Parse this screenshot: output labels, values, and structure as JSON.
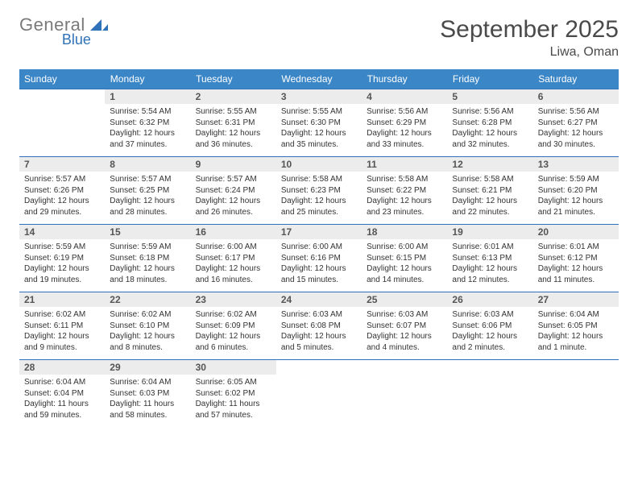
{
  "logo": {
    "word1": "General",
    "word2": "Blue",
    "icon_color": "#2f72b8",
    "word1_color": "#7a7a7a",
    "word2_color": "#2f72b8"
  },
  "header": {
    "title": "September 2025",
    "location": "Liwa, Oman"
  },
  "colors": {
    "header_bg": "#3b86c6",
    "header_border": "#2f72b8",
    "daynum_bg": "#ececec",
    "text": "#333333"
  },
  "weekdays": [
    "Sunday",
    "Monday",
    "Tuesday",
    "Wednesday",
    "Thursday",
    "Friday",
    "Saturday"
  ],
  "weeks": [
    [
      {
        "blank": true
      },
      {
        "n": "1",
        "sunrise": "5:54 AM",
        "sunset": "6:32 PM",
        "daylight": "12 hours and 37 minutes."
      },
      {
        "n": "2",
        "sunrise": "5:55 AM",
        "sunset": "6:31 PM",
        "daylight": "12 hours and 36 minutes."
      },
      {
        "n": "3",
        "sunrise": "5:55 AM",
        "sunset": "6:30 PM",
        "daylight": "12 hours and 35 minutes."
      },
      {
        "n": "4",
        "sunrise": "5:56 AM",
        "sunset": "6:29 PM",
        "daylight": "12 hours and 33 minutes."
      },
      {
        "n": "5",
        "sunrise": "5:56 AM",
        "sunset": "6:28 PM",
        "daylight": "12 hours and 32 minutes."
      },
      {
        "n": "6",
        "sunrise": "5:56 AM",
        "sunset": "6:27 PM",
        "daylight": "12 hours and 30 minutes."
      }
    ],
    [
      {
        "n": "7",
        "sunrise": "5:57 AM",
        "sunset": "6:26 PM",
        "daylight": "12 hours and 29 minutes."
      },
      {
        "n": "8",
        "sunrise": "5:57 AM",
        "sunset": "6:25 PM",
        "daylight": "12 hours and 28 minutes."
      },
      {
        "n": "9",
        "sunrise": "5:57 AM",
        "sunset": "6:24 PM",
        "daylight": "12 hours and 26 minutes."
      },
      {
        "n": "10",
        "sunrise": "5:58 AM",
        "sunset": "6:23 PM",
        "daylight": "12 hours and 25 minutes."
      },
      {
        "n": "11",
        "sunrise": "5:58 AM",
        "sunset": "6:22 PM",
        "daylight": "12 hours and 23 minutes."
      },
      {
        "n": "12",
        "sunrise": "5:58 AM",
        "sunset": "6:21 PM",
        "daylight": "12 hours and 22 minutes."
      },
      {
        "n": "13",
        "sunrise": "5:59 AM",
        "sunset": "6:20 PM",
        "daylight": "12 hours and 21 minutes."
      }
    ],
    [
      {
        "n": "14",
        "sunrise": "5:59 AM",
        "sunset": "6:19 PM",
        "daylight": "12 hours and 19 minutes."
      },
      {
        "n": "15",
        "sunrise": "5:59 AM",
        "sunset": "6:18 PM",
        "daylight": "12 hours and 18 minutes."
      },
      {
        "n": "16",
        "sunrise": "6:00 AM",
        "sunset": "6:17 PM",
        "daylight": "12 hours and 16 minutes."
      },
      {
        "n": "17",
        "sunrise": "6:00 AM",
        "sunset": "6:16 PM",
        "daylight": "12 hours and 15 minutes."
      },
      {
        "n": "18",
        "sunrise": "6:00 AM",
        "sunset": "6:15 PM",
        "daylight": "12 hours and 14 minutes."
      },
      {
        "n": "19",
        "sunrise": "6:01 AM",
        "sunset": "6:13 PM",
        "daylight": "12 hours and 12 minutes."
      },
      {
        "n": "20",
        "sunrise": "6:01 AM",
        "sunset": "6:12 PM",
        "daylight": "12 hours and 11 minutes."
      }
    ],
    [
      {
        "n": "21",
        "sunrise": "6:02 AM",
        "sunset": "6:11 PM",
        "daylight": "12 hours and 9 minutes."
      },
      {
        "n": "22",
        "sunrise": "6:02 AM",
        "sunset": "6:10 PM",
        "daylight": "12 hours and 8 minutes."
      },
      {
        "n": "23",
        "sunrise": "6:02 AM",
        "sunset": "6:09 PM",
        "daylight": "12 hours and 6 minutes."
      },
      {
        "n": "24",
        "sunrise": "6:03 AM",
        "sunset": "6:08 PM",
        "daylight": "12 hours and 5 minutes."
      },
      {
        "n": "25",
        "sunrise": "6:03 AM",
        "sunset": "6:07 PM",
        "daylight": "12 hours and 4 minutes."
      },
      {
        "n": "26",
        "sunrise": "6:03 AM",
        "sunset": "6:06 PM",
        "daylight": "12 hours and 2 minutes."
      },
      {
        "n": "27",
        "sunrise": "6:04 AM",
        "sunset": "6:05 PM",
        "daylight": "12 hours and 1 minute."
      }
    ],
    [
      {
        "n": "28",
        "sunrise": "6:04 AM",
        "sunset": "6:04 PM",
        "daylight": "11 hours and 59 minutes."
      },
      {
        "n": "29",
        "sunrise": "6:04 AM",
        "sunset": "6:03 PM",
        "daylight": "11 hours and 58 minutes."
      },
      {
        "n": "30",
        "sunrise": "6:05 AM",
        "sunset": "6:02 PM",
        "daylight": "11 hours and 57 minutes."
      },
      {
        "blank": true
      },
      {
        "blank": true
      },
      {
        "blank": true
      },
      {
        "blank": true
      }
    ]
  ]
}
